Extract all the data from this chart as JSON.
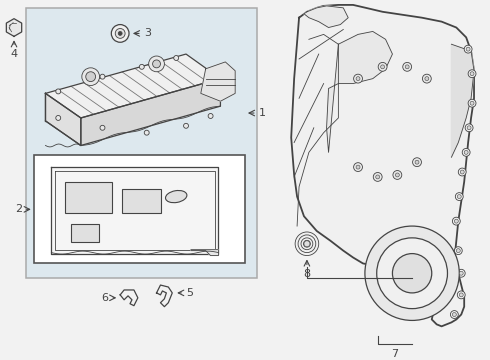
{
  "bg_color": "#f2f2f2",
  "white": "#ffffff",
  "line_color": "#444444",
  "panel_bg": "#e8e8e8",
  "fig_w": 4.9,
  "fig_h": 3.6,
  "dpi": 100
}
